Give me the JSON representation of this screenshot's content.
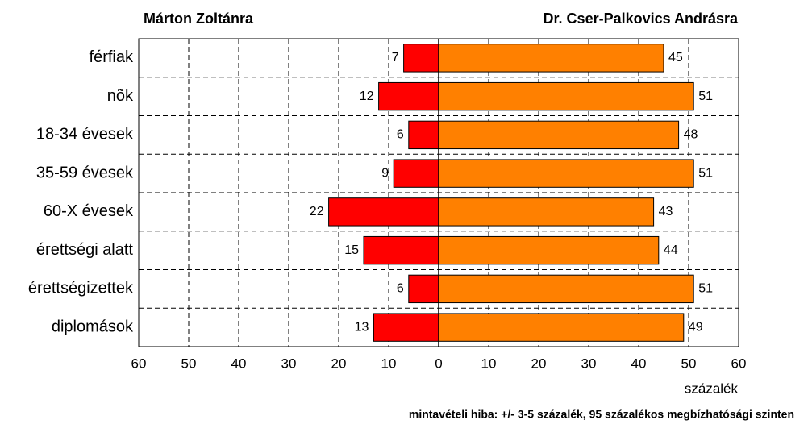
{
  "chart_data": {
    "type": "diverging_bar",
    "categories": [
      "férfiak",
      "nõk",
      "18-34 évesek",
      "35-59 évesek",
      "60-X évesek",
      "érettségi alatt",
      "érettségizettek",
      "diplomások"
    ],
    "series": [
      {
        "name": "Márton Zoltánra",
        "color": "#ff0000",
        "values": [
          7,
          12,
          6,
          9,
          22,
          15,
          6,
          13
        ]
      },
      {
        "name": "Dr. Cser-Palkovics Andrásra",
        "color": "#ff8000",
        "values": [
          45,
          51,
          48,
          51,
          43,
          44,
          51,
          49
        ]
      }
    ],
    "xlim": [
      -60,
      60
    ],
    "xticks": [
      {
        "value": -60,
        "label": "60"
      },
      {
        "value": -50,
        "label": "50"
      },
      {
        "value": -40,
        "label": "40"
      },
      {
        "value": -30,
        "label": "30"
      },
      {
        "value": -20,
        "label": "20"
      },
      {
        "value": -10,
        "label": "10"
      },
      0,
      10,
      20,
      30,
      40,
      50,
      60
    ],
    "xlabel": "százalék",
    "note": "mintavételi hiba: +/- 3-5 százalék, 95 százalékos megbízhatósági szinten",
    "grid": true
  }
}
